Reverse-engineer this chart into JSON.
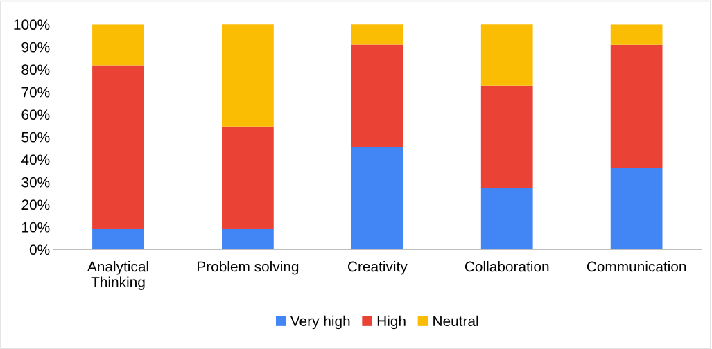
{
  "chart_data": {
    "type": "bar",
    "stacked": true,
    "categories": [
      "Analytical\nThinking",
      "Problem solving",
      "Creativity",
      "Collaboration",
      "Communication"
    ],
    "series": [
      {
        "name": "Very high",
        "color": "#4285f4",
        "values": [
          9.1,
          9.1,
          45.5,
          27.3,
          36.4
        ]
      },
      {
        "name": "High",
        "color": "#ea4335",
        "values": [
          72.7,
          45.5,
          45.5,
          45.5,
          54.5
        ]
      },
      {
        "name": "Neutral",
        "color": "#fbbc04",
        "values": [
          18.2,
          45.5,
          9.1,
          27.3,
          9.1
        ]
      }
    ],
    "ylim": [
      0,
      100
    ],
    "yticks": [
      {
        "value": 0,
        "label": "0%"
      },
      {
        "value": 10,
        "label": "10%"
      },
      {
        "value": 20,
        "label": "20%"
      },
      {
        "value": 30,
        "label": "30%"
      },
      {
        "value": 40,
        "label": "40%"
      },
      {
        "value": 50,
        "label": "50%"
      },
      {
        "value": 60,
        "label": "60%"
      },
      {
        "value": 70,
        "label": "70%"
      },
      {
        "value": 80,
        "label": "80%"
      },
      {
        "value": 90,
        "label": "90%"
      },
      {
        "value": 100,
        "label": "100%"
      }
    ],
    "grid": false,
    "legend": "bottom"
  }
}
